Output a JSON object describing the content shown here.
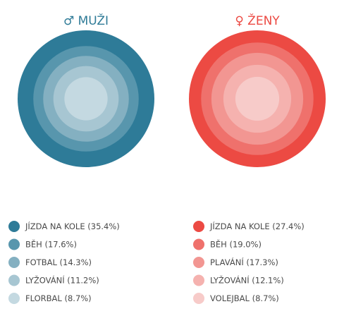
{
  "chart_data": [
    {
      "type": "concentric",
      "title": "♂ MUŽI",
      "title_color": "#2f7b97",
      "categories": [
        "JÍZDA NA KOLE",
        "BĚH",
        "FOTBAL",
        "LYŽOVÁNÍ",
        "FLORBAL"
      ],
      "values": [
        35.4,
        17.6,
        14.3,
        11.2,
        8.7
      ],
      "value_labels": [
        "(35.4%)",
        "(17.6%)",
        "(14.3%)",
        "(11.2%)",
        "(8.7%)"
      ],
      "colors": [
        "#2e7b98",
        "#5896ad",
        "#84b0c1",
        "#a7c6d2",
        "#c4d9e1"
      ]
    },
    {
      "type": "concentric",
      "title": "♀ ŽENY",
      "title_color": "#ec4a43",
      "categories": [
        "JÍZDA NA KOLE",
        "BĚH",
        "PLAVÁNÍ",
        "LYŽOVÁNÍ",
        "VOLEJBAL"
      ],
      "values": [
        27.4,
        19.0,
        17.3,
        12.1,
        8.7
      ],
      "value_labels": [
        "(27.4%)",
        "(19.0%)",
        "(17.3%)",
        "(12.1%)",
        "(8.7%)"
      ],
      "colors": [
        "#ec4a43",
        "#ef716c",
        "#f29692",
        "#f5b2af",
        "#f7cbc9"
      ]
    }
  ]
}
